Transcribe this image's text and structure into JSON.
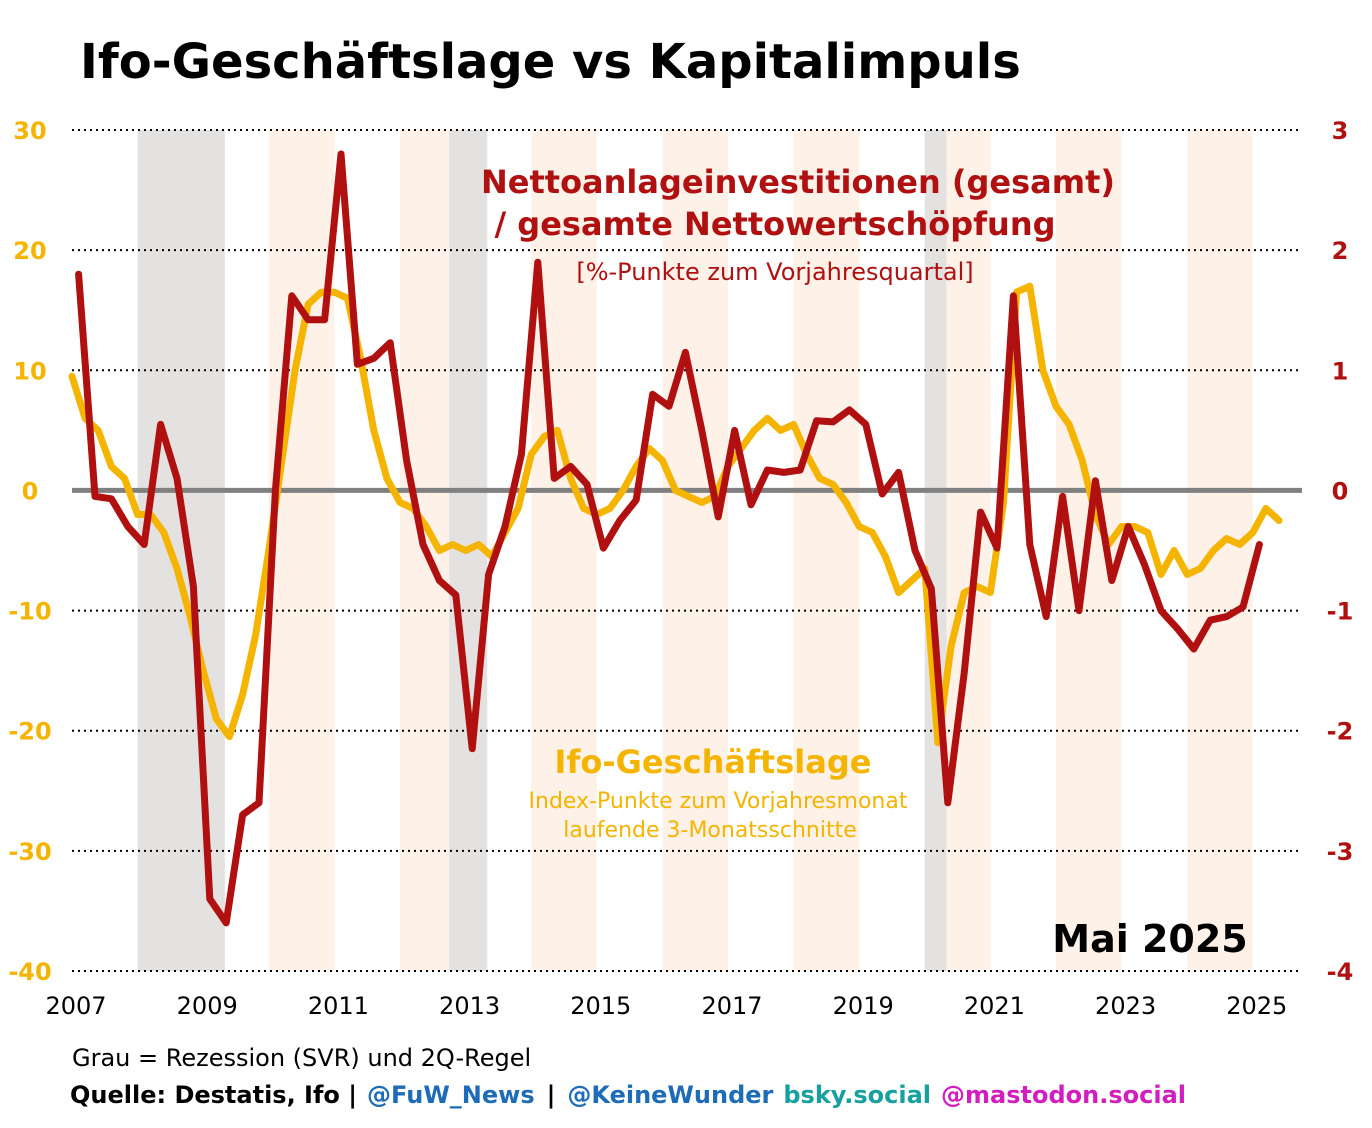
{
  "chart_data": {
    "type": "line",
    "title": "Ifo-Geschäftslage vs Kapitalimpuls",
    "date_label": "Mai 2025",
    "x_ticks": [
      "2007",
      "2009",
      "2011",
      "2013",
      "2015",
      "2017",
      "2019",
      "2021",
      "2023",
      "2025"
    ],
    "xlim": [
      2007.0,
      2025.75
    ],
    "y_left": {
      "ticks": [
        "30",
        "20",
        "10",
        "0",
        "-10",
        "-20",
        "-30",
        "-40"
      ],
      "ylim": [
        -40,
        30
      ]
    },
    "y_right": {
      "ticks": [
        "3",
        "2",
        "1",
        "0",
        "-1",
        "-2",
        "-3",
        "-4"
      ],
      "ylim": [
        -4,
        3
      ]
    },
    "grid": "dotted horizontal",
    "zero_line": true,
    "shading": {
      "recessions": [
        [
          2008.0,
          2009.33
        ],
        [
          2012.75,
          2013.33
        ],
        [
          2020.0,
          2020.33
        ]
      ],
      "alternate_years": [
        [
          2010,
          2011
        ],
        [
          2012,
          2013
        ],
        [
          2014,
          2015
        ],
        [
          2016,
          2017
        ],
        [
          2018,
          2019
        ],
        [
          2020,
          2021
        ],
        [
          2022,
          2023
        ],
        [
          2024,
          2025
        ]
      ]
    },
    "series": [
      {
        "name": "Nettoanlageinvestitionen (gesamt) / gesamte Nettowertschöpfung",
        "unit": "[%-Punkte zum Vorjahresquartal]",
        "axis": "right",
        "color": "#B01010",
        "x": [
          2007.1,
          2007.35,
          2007.6,
          2007.85,
          2008.1,
          2008.35,
          2008.6,
          2008.85,
          2009.1,
          2009.35,
          2009.6,
          2009.85,
          2010.1,
          2010.35,
          2010.6,
          2010.85,
          2011.1,
          2011.35,
          2011.6,
          2011.85,
          2012.1,
          2012.35,
          2012.6,
          2012.85,
          2013.1,
          2013.35,
          2013.6,
          2013.85,
          2014.1,
          2014.35,
          2014.6,
          2014.85,
          2015.1,
          2015.35,
          2015.6,
          2015.85,
          2016.1,
          2016.35,
          2016.6,
          2016.85,
          2017.1,
          2017.35,
          2017.6,
          2017.85,
          2018.1,
          2018.35,
          2018.6,
          2018.85,
          2019.1,
          2019.35,
          2019.6,
          2019.85,
          2020.1,
          2020.35,
          2020.6,
          2020.85,
          2021.1,
          2021.35,
          2021.6,
          2021.85,
          2022.1,
          2022.35,
          2022.6,
          2022.85,
          2023.1,
          2023.35,
          2023.6,
          2023.85,
          2024.1,
          2024.35,
          2024.6,
          2024.85,
          2025.1
        ],
        "values": [
          1.8,
          -0.05,
          -0.07,
          -0.3,
          -0.45,
          0.55,
          0.1,
          -0.8,
          -3.4,
          -3.6,
          -2.7,
          -2.6,
          0.0,
          1.62,
          1.42,
          1.42,
          2.8,
          1.05,
          1.1,
          1.23,
          0.25,
          -0.45,
          -0.75,
          -0.87,
          -2.15,
          -0.7,
          -0.3,
          0.3,
          1.9,
          0.1,
          0.2,
          0.05,
          -0.48,
          -0.25,
          -0.08,
          0.8,
          0.7,
          1.15,
          0.5,
          -0.22,
          0.5,
          -0.12,
          0.17,
          0.15,
          0.17,
          0.58,
          0.57,
          0.67,
          0.55,
          -0.03,
          0.15,
          -0.5,
          -0.82,
          -2.6,
          -1.52,
          -0.18,
          -0.48,
          1.62,
          -0.45,
          -1.05,
          -0.05,
          -1.0,
          0.08,
          -0.75,
          -0.3,
          -0.62,
          -1.0,
          -1.15,
          -1.32,
          -1.08,
          -1.05,
          -0.97,
          -0.45
        ]
      },
      {
        "name": "Ifo-Geschäftslage",
        "unit": "Index-Punkte zum Vorjahresmonat",
        "note": "laufende 3-Monatsschnitte",
        "axis": "left",
        "color": "#F5B400",
        "x": [
          2007.0,
          2007.2,
          2007.4,
          2007.6,
          2007.8,
          2008.0,
          2008.2,
          2008.4,
          2008.6,
          2008.8,
          2009.0,
          2009.2,
          2009.4,
          2009.6,
          2009.8,
          2010.0,
          2010.2,
          2010.4,
          2010.6,
          2010.8,
          2011.0,
          2011.2,
          2011.4,
          2011.6,
          2011.8,
          2012.0,
          2012.2,
          2012.4,
          2012.6,
          2012.8,
          2013.0,
          2013.2,
          2013.4,
          2013.6,
          2013.8,
          2014.0,
          2014.2,
          2014.4,
          2014.6,
          2014.8,
          2015.0,
          2015.2,
          2015.4,
          2015.6,
          2015.8,
          2016.0,
          2016.2,
          2016.4,
          2016.6,
          2016.8,
          2017.0,
          2017.2,
          2017.4,
          2017.6,
          2017.8,
          2018.0,
          2018.2,
          2018.4,
          2018.6,
          2018.8,
          2019.0,
          2019.2,
          2019.4,
          2019.6,
          2019.8,
          2020.0,
          2020.2,
          2020.4,
          2020.6,
          2020.8,
          2021.0,
          2021.2,
          2021.4,
          2021.6,
          2021.8,
          2022.0,
          2022.2,
          2022.4,
          2022.6,
          2022.8,
          2023.0,
          2023.2,
          2023.4,
          2023.6,
          2023.8,
          2024.0,
          2024.2,
          2024.4,
          2024.6,
          2024.8,
          2025.0,
          2025.2,
          2025.4
        ],
        "values": [
          9.5,
          6.0,
          5.0,
          2.0,
          1.0,
          -2.0,
          -2.0,
          -3.5,
          -6.5,
          -10.5,
          -15.0,
          -19.0,
          -20.5,
          -17.0,
          -12.0,
          -5.0,
          2.5,
          10.0,
          15.5,
          16.5,
          16.5,
          16.0,
          11.0,
          5.0,
          1.0,
          -1.0,
          -1.5,
          -3.0,
          -5.0,
          -4.5,
          -5.0,
          -4.5,
          -5.5,
          -3.5,
          -1.5,
          3.0,
          4.5,
          5.0,
          1.0,
          -1.5,
          -2.0,
          -1.5,
          0.0,
          2.0,
          3.5,
          2.5,
          0.0,
          -0.5,
          -1.0,
          -0.5,
          2.0,
          3.5,
          5.0,
          6.0,
          5.0,
          5.5,
          3.0,
          1.0,
          0.5,
          -1.0,
          -3.0,
          -3.5,
          -5.5,
          -8.5,
          -7.5,
          -6.5,
          -21.0,
          -13.0,
          -8.5,
          -8.0,
          -8.5,
          -1.0,
          16.5,
          17.0,
          10.0,
          7.0,
          5.5,
          2.5,
          -2.0,
          -4.5,
          -3.0,
          -3.0,
          -3.5,
          -7.0,
          -5.0,
          -7.0,
          -6.5,
          -5.0,
          -4.0,
          -4.5,
          -3.5,
          -1.5,
          -2.5
        ]
      }
    ]
  },
  "annotations": {
    "red_title_line1": "Nettoanlageinvestitionen (gesamt)",
    "red_title_line2": "/ gesamte Nettowertschöpfung",
    "red_unit": "[%-Punkte zum Vorjahresquartal]",
    "yellow_title": "Ifo-Geschäftslage",
    "yellow_unit": "Index-Punkte zum Vorjahresmonat",
    "yellow_note": "laufende 3-Monatsschnitte"
  },
  "footer": {
    "note": "Grau = Rezession (SVR) und 2Q-Regel",
    "source_label": "Quelle: Destatis, Ifo |",
    "handle_fuw": "@FuW_News",
    "separator": "|",
    "handle_keine": "@KeineWunder",
    "bsky": "bsky.social",
    "mastodon": "@mastodon.social",
    "colors": {
      "fuw": "#1E6BB8",
      "keine": "#1E6BB8",
      "bsky": "#18A0A0",
      "mastodon": "#D21EBE"
    }
  }
}
